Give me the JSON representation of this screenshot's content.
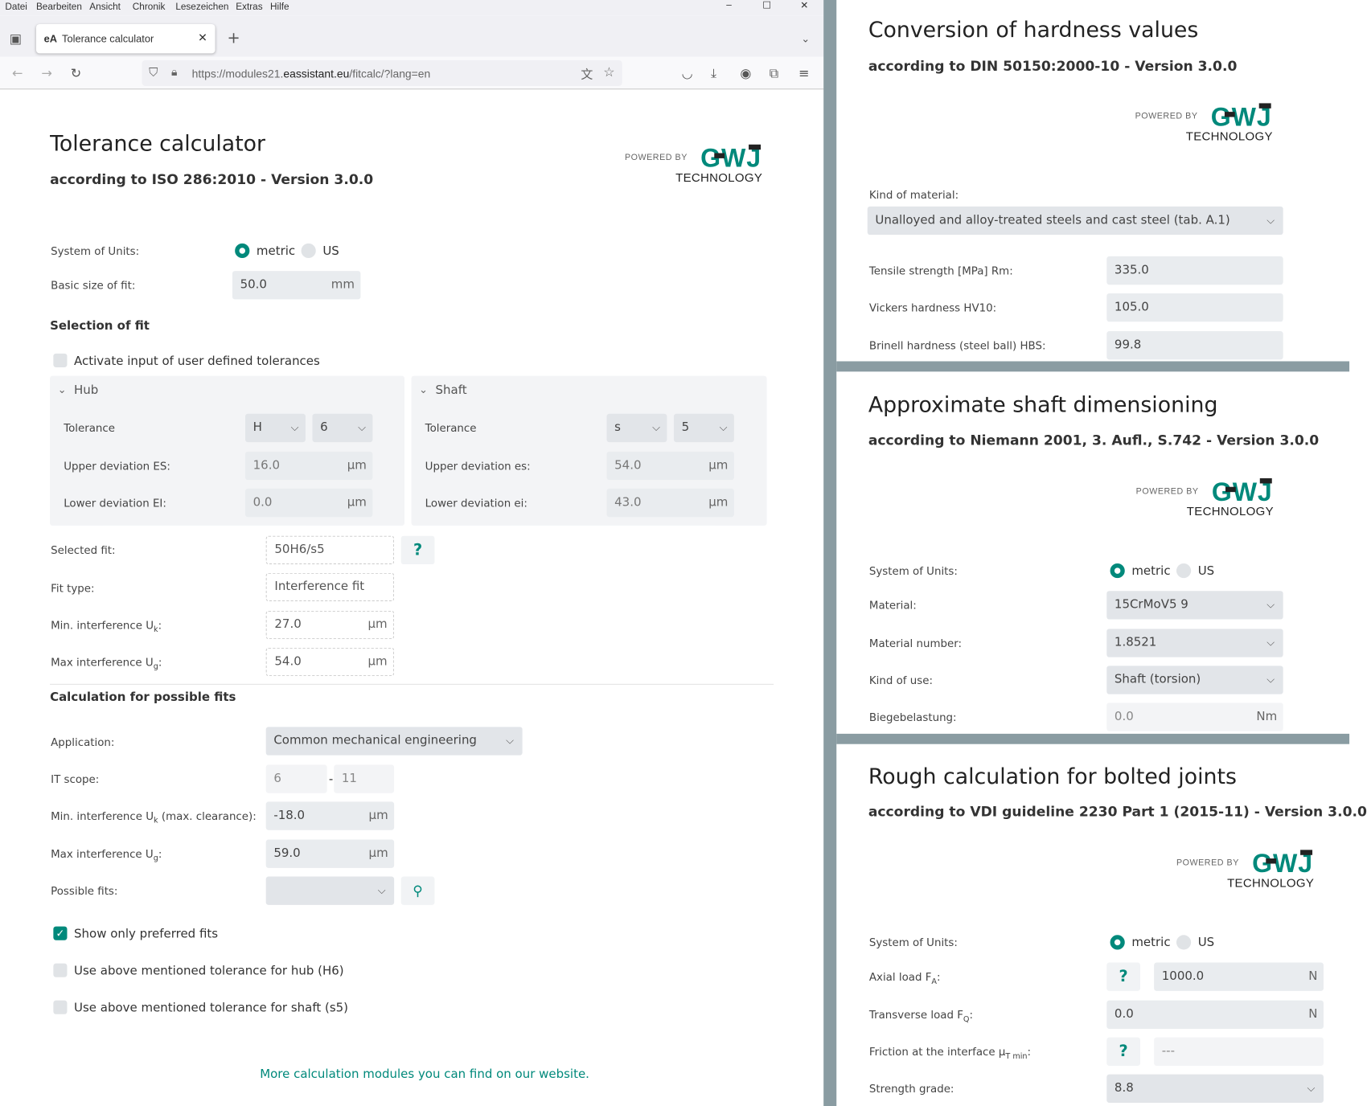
{
  "browser": {
    "menu": [
      "Datei",
      "Bearbeiten",
      "Ansicht",
      "Chronik",
      "Lesezeichen",
      "Extras",
      "Hilfe"
    ],
    "tab_favicon": "eA",
    "tab_title": "Tolerance calculator",
    "url_prefix": "https://modules21.",
    "url_domain": "eassistant.eu",
    "url_path": "/fitcalc/?lang=en"
  },
  "logo": {
    "powered_by": "POWERED BY",
    "brand": "GWJ",
    "technology": "TECHNOLOGY",
    "color": "#00897b"
  },
  "accent": "#00897b",
  "tolerance": {
    "title": "Tolerance calculator",
    "subtitle": "according to ISO 286:2010 - Version 3.0.0",
    "units_label": "System of Units:",
    "unit_metric": "metric",
    "unit_us": "US",
    "unit_selected": "metric",
    "basic_size_label": "Basic size of fit:",
    "basic_size": "50.0",
    "basic_size_unit": "mm",
    "selection_heading": "Selection of fit",
    "user_defined_label": "Activate input of user defined tolerances",
    "user_defined_checked": false,
    "hub": {
      "title": "Hub",
      "tolerance_label": "Tolerance",
      "letter": "H",
      "grade": "6",
      "upper_label": "Upper deviation ES:",
      "upper": "16.0",
      "lower_label": "Lower deviation EI:",
      "lower": "0.0",
      "unit": "µm"
    },
    "shaft": {
      "title": "Shaft",
      "tolerance_label": "Tolerance",
      "letter": "s",
      "grade": "5",
      "upper_label": "Upper deviation es:",
      "upper": "54.0",
      "lower_label": "Lower deviation ei:",
      "lower": "43.0",
      "unit": "µm"
    },
    "selected_fit_label": "Selected fit:",
    "selected_fit": "50H6/s5",
    "fit_type_label": "Fit type:",
    "fit_type": "Interference fit",
    "min_int_label": "Min. interference U",
    "min_int_sub": "k",
    "min_int": "27.0",
    "max_int_label": "Max interference U",
    "max_int_sub": "g",
    "max_int": "54.0",
    "unit": "µm",
    "calc_heading": "Calculation for possible fits",
    "application_label": "Application:",
    "application": "Common mechanical engineering",
    "it_scope_label": "IT scope:",
    "it_from": "6",
    "it_sep": "-",
    "it_to": "11",
    "calc_min_label": "Min. interference U",
    "calc_min_sub": "k",
    "calc_min_suffix": " (max. clearance):",
    "calc_min": "-18.0",
    "calc_max_label": "Max interference U",
    "calc_max_sub": "g",
    "calc_max": "59.0",
    "possible_fits_label": "Possible fits:",
    "possible_fits": "",
    "preferred_label": "Show only preferred fits",
    "preferred_checked": true,
    "hub_tol_label": "Use above mentioned tolerance for hub (H6)",
    "hub_tol_checked": false,
    "shaft_tol_label": "Use above mentioned tolerance for shaft (s5)",
    "shaft_tol_checked": false,
    "more_link": "More calculation modules you can find on our website."
  },
  "hardness": {
    "title": "Conversion of hardness values",
    "subtitle": "according to DIN 50150:2000-10 - Version 3.0.0",
    "kind_label": "Kind of material:",
    "kind": "Unalloyed and alloy-treated steels and cast steel (tab. A.1)",
    "tensile_label": "Tensile strength [MPa] Rm:",
    "tensile": "335.0",
    "vickers_label": "Vickers hardness HV10:",
    "vickers": "105.0",
    "brinell_label": "Brinell hardness (steel ball) HBS:",
    "brinell": "99.8"
  },
  "shaft_dim": {
    "title": "Approximate shaft dimensioning",
    "subtitle": "according to Niemann 2001, 3. Aufl., S.742 - Version 3.0.0",
    "units_label": "System of Units:",
    "unit_metric": "metric",
    "unit_us": "US",
    "material_label": "Material:",
    "material": "15CrMoV5 9",
    "matno_label": "Material number:",
    "matno": "1.8521",
    "use_label": "Kind of use:",
    "use": "Shaft (torsion)",
    "bend_label": "Biegebelastung:",
    "bend": "0.0",
    "bend_unit": "Nm"
  },
  "bolted": {
    "title": "Rough calculation for bolted joints",
    "subtitle": "according to VDI guideline 2230 Part 1 (2015-11) - Version 3.0.0",
    "units_label": "System of Units:",
    "unit_metric": "metric",
    "unit_us": "US",
    "axial_label": "Axial load F",
    "axial_sub": "A",
    "axial": "1000.0",
    "axial_unit": "N",
    "trans_label": "Transverse load F",
    "trans_sub": "Q",
    "trans": "0.0",
    "trans_unit": "N",
    "friction_label": "Friction at the interface µ",
    "friction_sub": "T min",
    "friction": "---",
    "grade_label": "Strength grade:",
    "grade": "8.8",
    "help": "?"
  }
}
